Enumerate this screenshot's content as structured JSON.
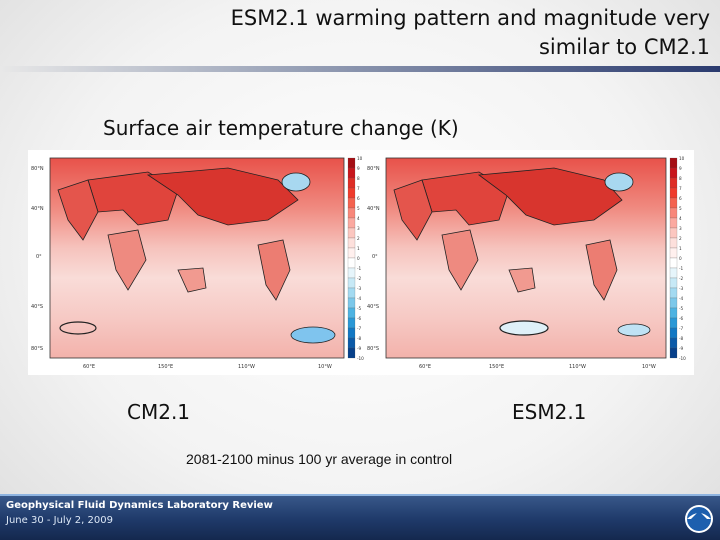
{
  "slide": {
    "title": "ESM2.1 warming pattern and magnitude very similar to CM2.1",
    "subtitle": "Surface air temperature change (K)",
    "caption_left": "CM2.1",
    "caption_right": "ESM2.1",
    "footnote": "2081-2100 minus 100 yr average in control"
  },
  "footer": {
    "title": "Geophysical Fluid Dynamics Laboratory Review",
    "date": "June 30 - July 2, 2009"
  },
  "maps": {
    "lat_labels": [
      "80°N",
      "40°N",
      "0°",
      "40°S",
      "80°S"
    ],
    "lon_labels": [
      "60°E",
      "150°E",
      "110°W",
      "10°W"
    ],
    "colorbar_labels": [
      "10",
      "9",
      "8",
      "7",
      "6",
      "5",
      "4",
      "3",
      "2",
      "1",
      "0",
      "-1",
      "-2",
      "-3",
      "-4",
      "-5",
      "-6",
      "-7",
      "-8",
      "-9",
      "-10"
    ]
  },
  "colors": {
    "accent": "#1f3a6a",
    "warm_strong": "#d7302a",
    "warm_light": "#f7cfcc",
    "cool": "#3aa0e0"
  },
  "icons": {
    "logo": "noaa-logo-icon"
  }
}
